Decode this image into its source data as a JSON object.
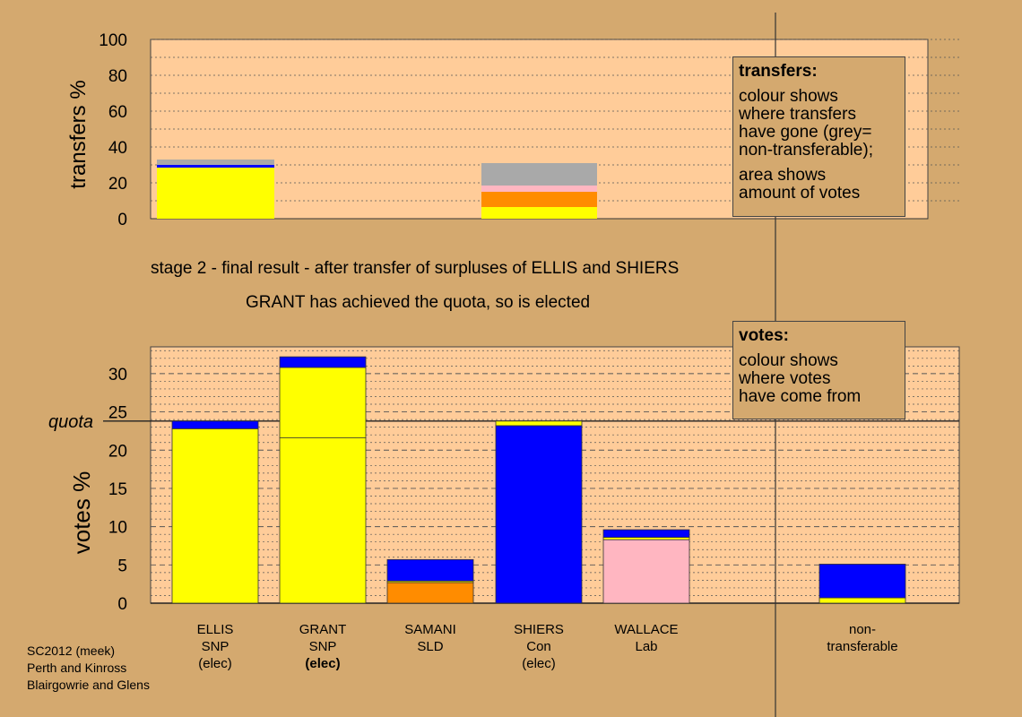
{
  "captions": {
    "stage": "stage 2 - final result - after transfer of surpluses of ELLIS and SHIERS",
    "elected": "GRANT has achieved the quota, so is elected"
  },
  "legend_transfers": {
    "title": "transfers:",
    "lines": [
      "colour shows",
      "where transfers",
      "have gone (grey=",
      "non-transferable);"
    ],
    "lines2": [
      "area shows",
      "amount of votes"
    ]
  },
  "legend_votes": {
    "title": "votes:",
    "lines": [
      "colour shows",
      "where votes",
      "have come from"
    ]
  },
  "footer": [
    "SC2012 (meek)",
    "Perth and Kinross",
    "Blairgowrie and Glens"
  ],
  "candidates": [
    {
      "name": "ELLIS",
      "party": "SNP",
      "status": "(elec)"
    },
    {
      "name": "GRANT",
      "party": "SNP",
      "status": "(elec)"
    },
    {
      "name": "SAMANI",
      "party": "SLD",
      "status": ""
    },
    {
      "name": "SHIERS",
      "party": "Con",
      "status": "(elec)"
    },
    {
      "name": "WALLACE",
      "party": "Lab",
      "status": ""
    },
    {
      "name": "non-",
      "party": "transferable",
      "status": ""
    }
  ],
  "colors": {
    "SNP": "#ffff00",
    "Con": "#0000ff",
    "SLD": "#ff8c00",
    "Lab": "#ffb6c1",
    "nontransferable": "#a9a9a9",
    "plot_bg": "#ffcc99",
    "page_bg": "#d4a96f"
  },
  "chart_data": [
    {
      "type": "bar",
      "stacked": true,
      "ylabel": "transfers %",
      "ylim": [
        0,
        100
      ],
      "yticks": [
        0,
        20,
        40,
        60,
        80,
        100
      ],
      "bars": [
        {
          "source": "ELLIS",
          "segments": [
            {
              "to": "SNP",
              "value": 28.5
            },
            {
              "to": "Con",
              "value": 1.5
            },
            {
              "to": "nontransferable",
              "value": 3.0
            }
          ]
        },
        {
          "source": "SHIERS",
          "segments": [
            {
              "to": "SNP",
              "value": 6.5
            },
            {
              "to": "SLD",
              "value": 8.5
            },
            {
              "to": "Lab",
              "value": 3.5
            },
            {
              "to": "nontransferable",
              "value": 12.5
            }
          ]
        }
      ]
    },
    {
      "type": "bar",
      "stacked": true,
      "ylabel": "votes %",
      "ylim": [
        0,
        33.5
      ],
      "yticks": [
        0,
        5,
        10,
        15,
        20,
        25,
        30
      ],
      "quota": 23.8,
      "quota_label": "quota",
      "categories": [
        "ELLIS",
        "GRANT",
        "SAMANI",
        "SHIERS",
        "WALLACE",
        "non-transferable"
      ],
      "bars": [
        {
          "candidate": "ELLIS",
          "segments": [
            {
              "from": "SNP",
              "value": 22.8
            },
            {
              "from": "Con",
              "value": 1.0
            }
          ]
        },
        {
          "candidate": "GRANT",
          "segments": [
            {
              "from": "SNP",
              "value": 21.6
            },
            {
              "from": "SNP",
              "value": 9.2
            },
            {
              "from": "Con",
              "value": 1.4
            }
          ]
        },
        {
          "candidate": "SAMANI",
          "segments": [
            {
              "from": "SLD",
              "value": 2.7
            },
            {
              "from": "SNP",
              "value": 0.2
            },
            {
              "from": "Con",
              "value": 2.8
            }
          ]
        },
        {
          "candidate": "SHIERS",
          "segments": [
            {
              "from": "Con",
              "value": 23.2
            },
            {
              "from": "SNP",
              "value": 0.6
            }
          ]
        },
        {
          "candidate": "WALLACE",
          "segments": [
            {
              "from": "Lab",
              "value": 8.3
            },
            {
              "from": "SNP",
              "value": 0.3
            },
            {
              "from": "Con",
              "value": 1.0
            }
          ]
        },
        {
          "candidate": "non-transferable",
          "segments": [
            {
              "from": "SNP",
              "value": 0.7
            },
            {
              "from": "Con",
              "value": 4.4
            }
          ]
        }
      ]
    }
  ]
}
